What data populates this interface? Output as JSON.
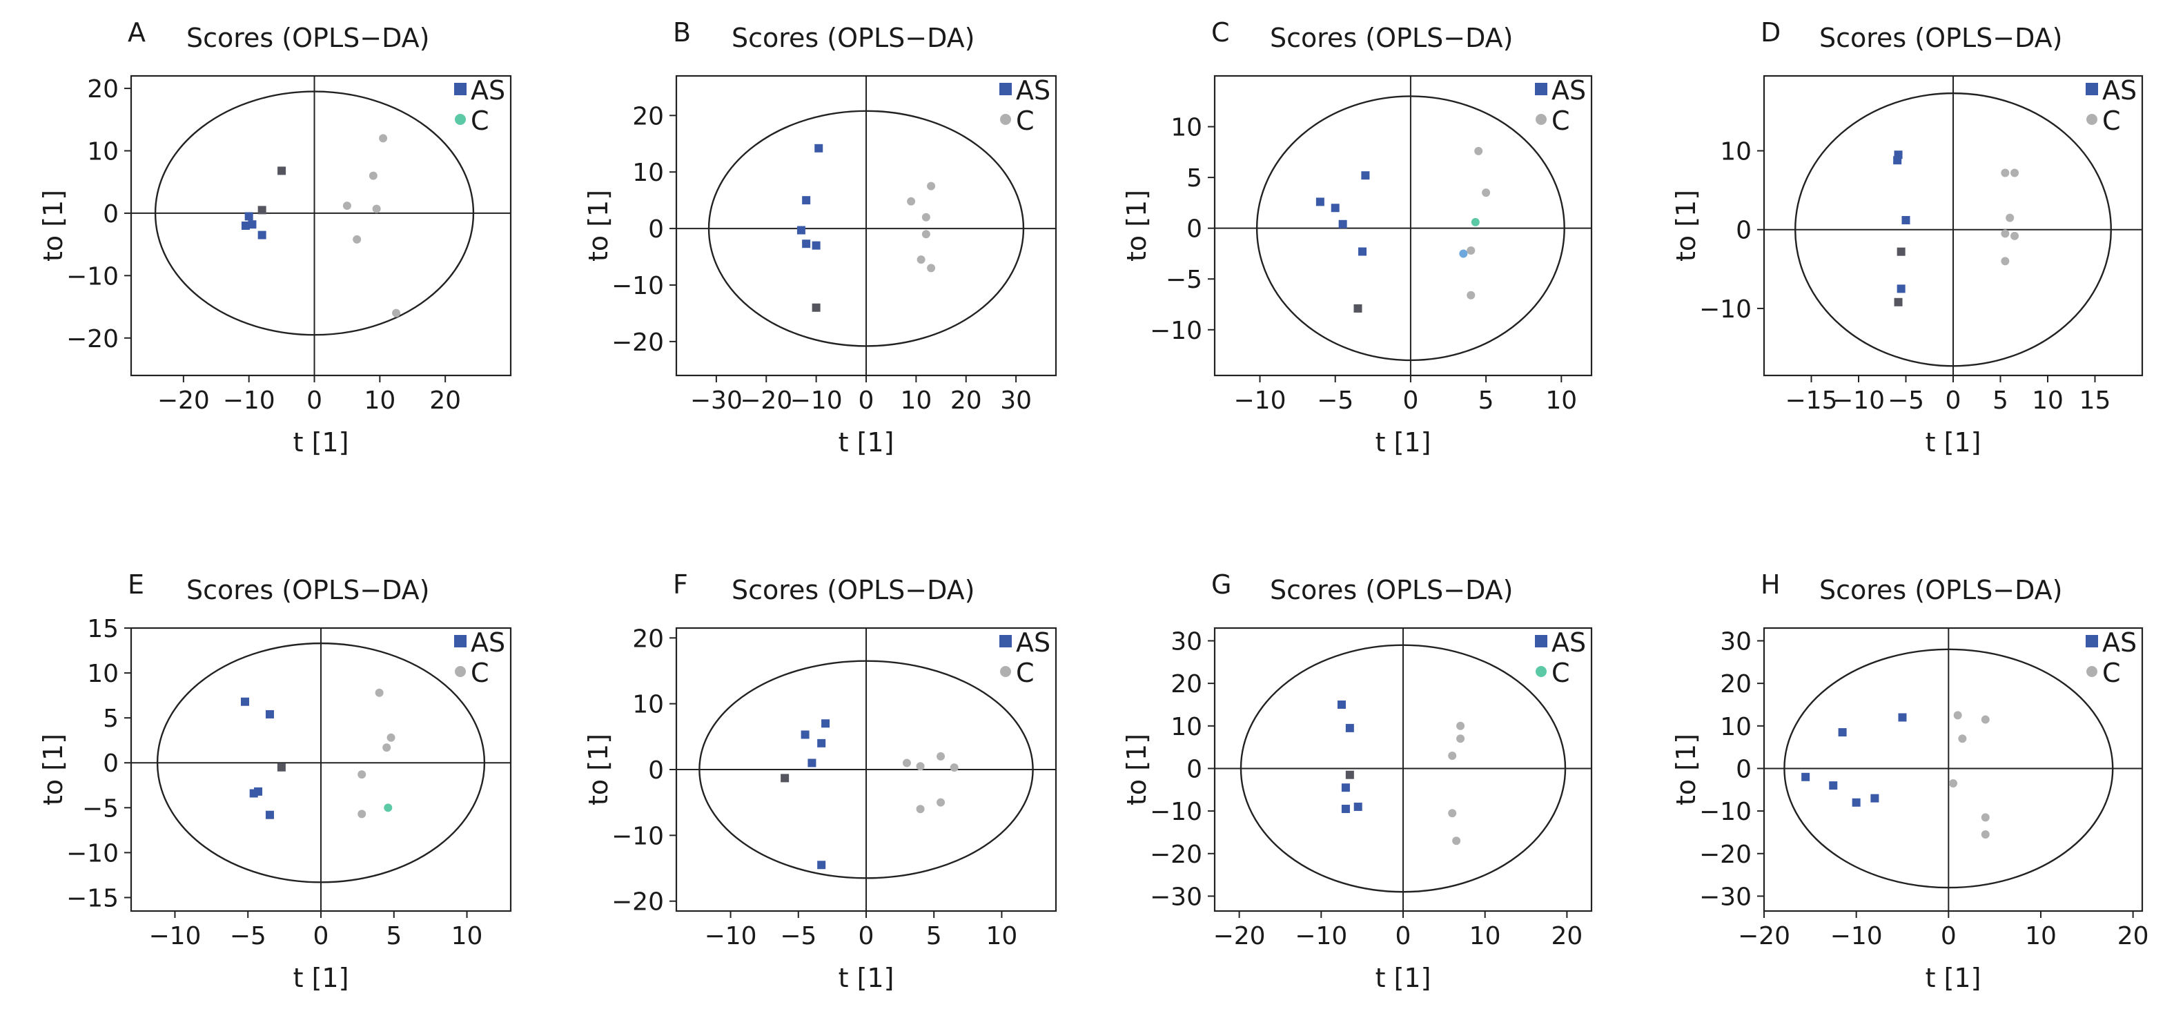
{
  "figure": {
    "panels": [
      "A",
      "B",
      "C",
      "D",
      "E",
      "F",
      "G",
      "H"
    ]
  },
  "colors": {
    "AS": "#3a5aa8",
    "AS_dark": "#55555f",
    "C": "#b0b0b0",
    "C_accent": "#5bc9a6",
    "C_blue": "#6fa8dc"
  },
  "chart_data": [
    {
      "panel": "A",
      "type": "scatter",
      "title": "Scores (OPLS−DA)",
      "xlabel": "t [1]",
      "ylabel": "to [1]",
      "xlim": [
        -28,
        30
      ],
      "ylim": [
        -26,
        22
      ],
      "xticks": [
        -20,
        -10,
        0,
        10,
        20
      ],
      "yticks": [
        -20,
        -10,
        0,
        10,
        20
      ],
      "ellipse": {
        "rx": 24.3,
        "ry": 19.5
      },
      "legend": [
        {
          "name": "AS",
          "color": "#3a5aa8",
          "marker": "square"
        },
        {
          "name": "C",
          "color": "#5bc9a6",
          "marker": "circle"
        }
      ],
      "series": [
        {
          "name": "AS",
          "points": [
            {
              "x": -10.5,
              "y": -2.0,
              "color": "#3a5aa8"
            },
            {
              "x": -10.0,
              "y": -0.5,
              "color": "#3a5aa8"
            },
            {
              "x": -9.5,
              "y": -1.8,
              "color": "#3a5aa8"
            },
            {
              "x": -8.0,
              "y": -3.5,
              "color": "#3a5aa8"
            },
            {
              "x": -8.0,
              "y": 0.5,
              "color": "#55555f"
            },
            {
              "x": -5.0,
              "y": 6.8,
              "color": "#55555f"
            }
          ]
        },
        {
          "name": "C",
          "points": [
            {
              "x": 5.0,
              "y": 1.2
            },
            {
              "x": 6.5,
              "y": -4.2
            },
            {
              "x": 9.0,
              "y": 6.0
            },
            {
              "x": 9.5,
              "y": 0.7
            },
            {
              "x": 10.5,
              "y": 12.0
            },
            {
              "x": 12.5,
              "y": -16.0
            }
          ]
        }
      ]
    },
    {
      "panel": "B",
      "type": "scatter",
      "title": "Scores (OPLS−DA)",
      "xlabel": "t [1]",
      "ylabel": "to [1]",
      "xlim": [
        -38,
        38
      ],
      "ylim": [
        -26,
        27
      ],
      "xticks": [
        -30,
        -20,
        -10,
        0,
        10,
        20,
        30
      ],
      "yticks": [
        -20,
        -10,
        0,
        10,
        20
      ],
      "ellipse": {
        "rx": 31.5,
        "ry": 20.8
      },
      "legend": [
        {
          "name": "AS",
          "color": "#3a5aa8",
          "marker": "square"
        },
        {
          "name": "C",
          "color": "#b0b0b0",
          "marker": "circle"
        }
      ],
      "series": [
        {
          "name": "AS",
          "points": [
            {
              "x": -9.5,
              "y": 14.2,
              "color": "#3a5aa8"
            },
            {
              "x": -12.0,
              "y": 5.0,
              "color": "#3a5aa8"
            },
            {
              "x": -13.0,
              "y": -0.3,
              "color": "#3a5aa8"
            },
            {
              "x": -12.0,
              "y": -2.7,
              "color": "#3a5aa8"
            },
            {
              "x": -10.0,
              "y": -3.0,
              "color": "#3a5aa8"
            },
            {
              "x": -10.0,
              "y": -14.0,
              "color": "#55555f"
            }
          ]
        },
        {
          "name": "C",
          "points": [
            {
              "x": 9.0,
              "y": 4.8
            },
            {
              "x": 13.0,
              "y": 7.5
            },
            {
              "x": 12.0,
              "y": 2.0
            },
            {
              "x": 12.0,
              "y": -1.0
            },
            {
              "x": 11.0,
              "y": -5.5
            },
            {
              "x": 13.0,
              "y": -7.0
            }
          ]
        }
      ]
    },
    {
      "panel": "C",
      "type": "scatter",
      "title": "Scores (OPLS−DA)",
      "xlabel": "t [1]",
      "ylabel": "to [1]",
      "xlim": [
        -13,
        12
      ],
      "ylim": [
        -14.5,
        15
      ],
      "xticks": [
        -10,
        -5,
        0,
        5,
        10
      ],
      "yticks": [
        -10,
        -5,
        0,
        5,
        10
      ],
      "ellipse": {
        "rx": 10.2,
        "ry": 13.0
      },
      "legend": [
        {
          "name": "AS",
          "color": "#3a5aa8",
          "marker": "square"
        },
        {
          "name": "C",
          "color": "#b0b0b0",
          "marker": "circle"
        }
      ],
      "series": [
        {
          "name": "AS",
          "points": [
            {
              "x": -6.0,
              "y": 2.6,
              "color": "#3a5aa8"
            },
            {
              "x": -5.0,
              "y": 2.0,
              "color": "#3a5aa8"
            },
            {
              "x": -4.5,
              "y": 0.4,
              "color": "#3a5aa8"
            },
            {
              "x": -3.0,
              "y": 5.2,
              "color": "#3a5aa8"
            },
            {
              "x": -3.2,
              "y": -2.3,
              "color": "#3a5aa8"
            },
            {
              "x": -3.5,
              "y": -7.9,
              "color": "#55555f"
            }
          ]
        },
        {
          "name": "C",
          "points": [
            {
              "x": 4.5,
              "y": 7.6
            },
            {
              "x": 5.0,
              "y": 3.5
            },
            {
              "x": 4.3,
              "y": 0.6,
              "color": "#5bc9a6"
            },
            {
              "x": 3.5,
              "y": -2.5,
              "color": "#6fa8dc"
            },
            {
              "x": 4.0,
              "y": -2.2
            },
            {
              "x": 4.0,
              "y": -6.6
            }
          ]
        }
      ]
    },
    {
      "panel": "D",
      "type": "scatter",
      "title": "Scores (OPLS−DA)",
      "xlabel": "t [1]",
      "ylabel": "to [1]",
      "xlim": [
        -20,
        20
      ],
      "ylim": [
        -18.5,
        19.5
      ],
      "xticks": [
        -15,
        -10,
        -5,
        0,
        5,
        10,
        15
      ],
      "yticks": [
        -10,
        0,
        10
      ],
      "ellipse": {
        "rx": 16.7,
        "ry": 17.3
      },
      "legend": [
        {
          "name": "AS",
          "color": "#3a5aa8",
          "marker": "square"
        },
        {
          "name": "C",
          "color": "#b0b0b0",
          "marker": "circle"
        }
      ],
      "series": [
        {
          "name": "AS",
          "points": [
            {
              "x": -5.8,
              "y": 9.5,
              "color": "#3a5aa8"
            },
            {
              "x": -5.9,
              "y": 8.8,
              "color": "#3a5aa8"
            },
            {
              "x": -5.0,
              "y": 1.2,
              "color": "#3a5aa8"
            },
            {
              "x": -5.5,
              "y": -2.8,
              "color": "#55555f"
            },
            {
              "x": -5.5,
              "y": -7.5,
              "color": "#3a5aa8"
            },
            {
              "x": -5.8,
              "y": -9.2,
              "color": "#55555f"
            }
          ]
        },
        {
          "name": "C",
          "points": [
            {
              "x": 5.5,
              "y": 7.2
            },
            {
              "x": 6.5,
              "y": 7.2
            },
            {
              "x": 6.0,
              "y": 1.5
            },
            {
              "x": 5.5,
              "y": -0.5
            },
            {
              "x": 6.5,
              "y": -0.8
            },
            {
              "x": 5.5,
              "y": -4.0
            }
          ]
        }
      ]
    },
    {
      "panel": "E",
      "type": "scatter",
      "title": "Scores (OPLS−DA)",
      "xlabel": "t [1]",
      "ylabel": "to [1]",
      "xlim": [
        -13,
        13
      ],
      "ylim": [
        -16.5,
        15
      ],
      "xticks": [
        -10,
        -5,
        0,
        5,
        10
      ],
      "yticks": [
        -15,
        -10,
        -5,
        0,
        5,
        10,
        15
      ],
      "ellipse": {
        "rx": 11.2,
        "ry": 13.3
      },
      "legend": [
        {
          "name": "AS",
          "color": "#3a5aa8",
          "marker": "square"
        },
        {
          "name": "C",
          "color": "#b0b0b0",
          "marker": "circle"
        }
      ],
      "series": [
        {
          "name": "AS",
          "points": [
            {
              "x": -5.2,
              "y": 6.8,
              "color": "#3a5aa8"
            },
            {
              "x": -3.5,
              "y": 5.4,
              "color": "#3a5aa8"
            },
            {
              "x": -2.7,
              "y": -0.5,
              "color": "#55555f"
            },
            {
              "x": -4.3,
              "y": -3.2,
              "color": "#3a5aa8"
            },
            {
              "x": -4.6,
              "y": -3.4,
              "color": "#3a5aa8"
            },
            {
              "x": -3.5,
              "y": -5.8,
              "color": "#3a5aa8"
            }
          ]
        },
        {
          "name": "C",
          "points": [
            {
              "x": 4.0,
              "y": 7.8
            },
            {
              "x": 4.8,
              "y": 2.8
            },
            {
              "x": 4.5,
              "y": 1.7
            },
            {
              "x": 2.8,
              "y": -1.3
            },
            {
              "x": 4.6,
              "y": -5.0,
              "color": "#5bc9a6"
            },
            {
              "x": 2.8,
              "y": -5.7
            }
          ]
        }
      ]
    },
    {
      "panel": "F",
      "type": "scatter",
      "title": "Scores (OPLS−DA)",
      "xlabel": "t [1]",
      "ylabel": "to [1]",
      "xlim": [
        -14,
        14
      ],
      "ylim": [
        -21.5,
        21.5
      ],
      "xticks": [
        -10,
        -5,
        0,
        5,
        10
      ],
      "yticks": [
        -20,
        -10,
        0,
        10,
        20
      ],
      "ellipse": {
        "rx": 12.3,
        "ry": 16.5
      },
      "legend": [
        {
          "name": "AS",
          "color": "#3a5aa8",
          "marker": "square"
        },
        {
          "name": "C",
          "color": "#b0b0b0",
          "marker": "circle"
        }
      ],
      "series": [
        {
          "name": "AS",
          "points": [
            {
              "x": -3.0,
              "y": 7.0,
              "color": "#3a5aa8"
            },
            {
              "x": -4.5,
              "y": 5.3,
              "color": "#3a5aa8"
            },
            {
              "x": -3.3,
              "y": 4.0,
              "color": "#3a5aa8"
            },
            {
              "x": -4.0,
              "y": 1.0,
              "color": "#3a5aa8"
            },
            {
              "x": -6.0,
              "y": -1.3,
              "color": "#55555f"
            },
            {
              "x": -3.3,
              "y": -14.5,
              "color": "#3a5aa8"
            }
          ]
        },
        {
          "name": "C",
          "points": [
            {
              "x": 3.0,
              "y": 1.0
            },
            {
              "x": 4.0,
              "y": 0.5
            },
            {
              "x": 5.5,
              "y": 2.0
            },
            {
              "x": 6.5,
              "y": 0.3
            },
            {
              "x": 4.0,
              "y": -6.0
            },
            {
              "x": 5.5,
              "y": -5.0
            }
          ]
        }
      ]
    },
    {
      "panel": "G",
      "type": "scatter",
      "title": "Scores (OPLS−DA)",
      "xlabel": "t [1]",
      "ylabel": "to [1]",
      "xlim": [
        -23,
        23
      ],
      "ylim": [
        -33.5,
        33
      ],
      "xticks": [
        -20,
        -10,
        0,
        10,
        20
      ],
      "yticks": [
        -30,
        -20,
        -10,
        0,
        10,
        20,
        30
      ],
      "ellipse": {
        "rx": 19.8,
        "ry": 29.0
      },
      "legend": [
        {
          "name": "AS",
          "color": "#3a5aa8",
          "marker": "square"
        },
        {
          "name": "C",
          "color": "#5bc9a6",
          "marker": "circle"
        }
      ],
      "series": [
        {
          "name": "AS",
          "points": [
            {
              "x": -7.5,
              "y": 15.0,
              "color": "#3a5aa8"
            },
            {
              "x": -6.5,
              "y": 9.5,
              "color": "#3a5aa8"
            },
            {
              "x": -6.5,
              "y": -1.5,
              "color": "#55555f"
            },
            {
              "x": -7.0,
              "y": -4.5,
              "color": "#3a5aa8"
            },
            {
              "x": -7.0,
              "y": -9.5,
              "color": "#3a5aa8"
            },
            {
              "x": -5.5,
              "y": -9.0,
              "color": "#3a5aa8"
            }
          ]
        },
        {
          "name": "C",
          "points": [
            {
              "x": 7.0,
              "y": 10.0
            },
            {
              "x": 7.0,
              "y": 7.0
            },
            {
              "x": 6.0,
              "y": 3.0
            },
            {
              "x": 6.0,
              "y": -10.5
            },
            {
              "x": 6.5,
              "y": -17.0
            }
          ]
        }
      ]
    },
    {
      "panel": "H",
      "type": "scatter",
      "title": "Scores (OPLS−DA)",
      "xlabel": "t [1]",
      "ylabel": "to [1]",
      "xlim": [
        -20,
        21
      ],
      "ylim": [
        -33.5,
        33
      ],
      "xticks": [
        -20,
        -10,
        0,
        10,
        20
      ],
      "yticks": [
        -30,
        -20,
        -10,
        0,
        10,
        20,
        30
      ],
      "ellipse": {
        "rx": 17.8,
        "ry": 28.0
      },
      "legend": [
        {
          "name": "AS",
          "color": "#3a5aa8",
          "marker": "square"
        },
        {
          "name": "C",
          "color": "#b0b0b0",
          "marker": "circle"
        }
      ],
      "series": [
        {
          "name": "AS",
          "points": [
            {
              "x": -5.0,
              "y": 12.0,
              "color": "#3a5aa8"
            },
            {
              "x": -11.5,
              "y": 8.5,
              "color": "#3a5aa8"
            },
            {
              "x": -15.5,
              "y": -2.0,
              "color": "#3a5aa8"
            },
            {
              "x": -12.5,
              "y": -4.0,
              "color": "#3a5aa8"
            },
            {
              "x": -10.0,
              "y": -8.0,
              "color": "#3a5aa8"
            },
            {
              "x": -8.0,
              "y": -7.0,
              "color": "#3a5aa8"
            }
          ]
        },
        {
          "name": "C",
          "points": [
            {
              "x": 1.0,
              "y": 12.5
            },
            {
              "x": 4.0,
              "y": 11.5
            },
            {
              "x": 1.5,
              "y": 7.0
            },
            {
              "x": 0.5,
              "y": -3.5
            },
            {
              "x": 4.0,
              "y": -11.5
            },
            {
              "x": 4.0,
              "y": -15.5
            }
          ]
        }
      ]
    }
  ]
}
